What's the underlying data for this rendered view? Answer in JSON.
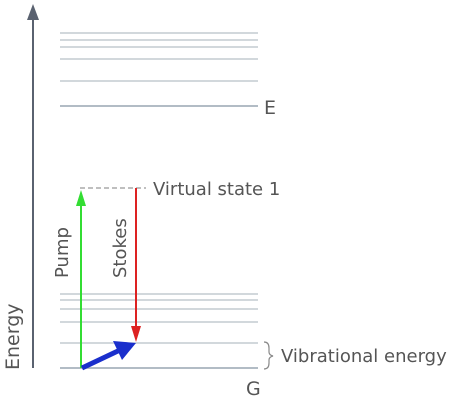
{
  "diagram": {
    "axis_label": "Energy",
    "excited_label": "E",
    "ground_label": "G",
    "virtual_state_label": "Virtual state 1",
    "pump_label": "Pump",
    "stokes_label": "Stokes",
    "vibrational_label": "Vibrational energy",
    "colors": {
      "axis": "#5a6270",
      "levels": "#b7c0c8",
      "ground": "#98a5b2",
      "virtual": "#999999",
      "pump": "#33dd33",
      "stokes": "#dd2222",
      "transition": "#1a2fcc",
      "text": "#555555"
    }
  }
}
